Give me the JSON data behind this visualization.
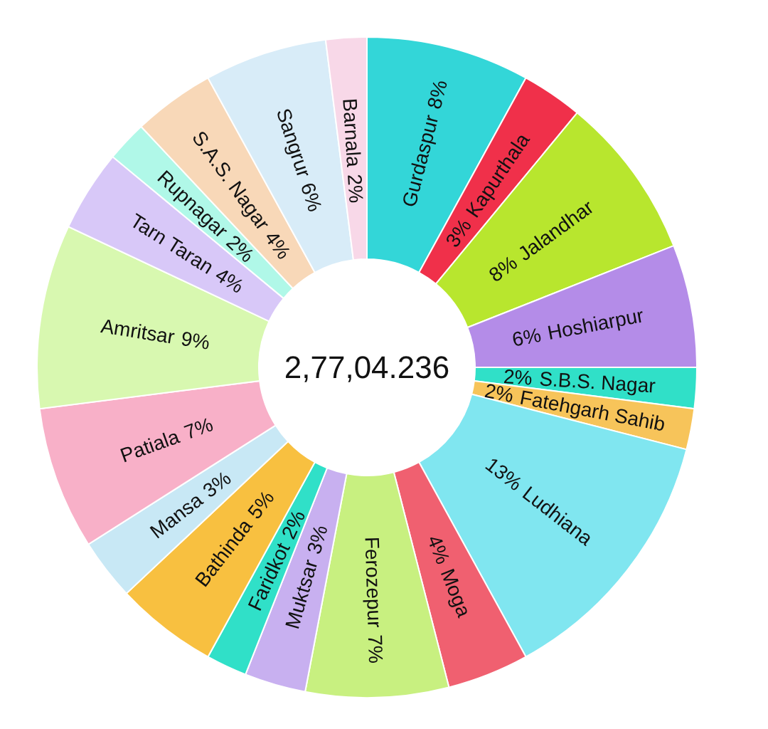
{
  "chart_data": {
    "type": "donut",
    "annotations": [
      "2,77,04.236"
    ],
    "categories": [
      "Gurdaspur",
      "Kapurthala",
      "Jalandhar",
      "Hoshiarpur",
      "S.B.S. Nagar",
      "Fatehgarh Sahib",
      "Ludhiana",
      "Moga",
      "Ferozepur",
      "Muktsar",
      "Faridkot",
      "Bathinda",
      "Mansa",
      "Patiala",
      "Amritsar",
      "Tarn Taran",
      "Rupnagar",
      "S.A.S. Nagar",
      "Sangrur",
      "Barnala"
    ],
    "values": [
      8,
      3,
      8,
      6,
      2,
      2,
      13,
      4,
      7,
      3,
      2,
      5,
      3,
      7,
      9,
      4,
      2,
      4,
      6,
      2
    ],
    "colors": [
      "#33d6d8",
      "#f0304a",
      "#b8e62e",
      "#b48ce8",
      "#30e0c8",
      "#f7c45a",
      "#80e6f0",
      "#f06070",
      "#c8f080",
      "#c8b0f0",
      "#30e0c8",
      "#f8c040",
      "#c8e8f5",
      "#f8b0c8",
      "#d8f8b0",
      "#d8c8f8",
      "#b0f8e8",
      "#f8d8b8",
      "#d8ecf8",
      "#f8d8e8"
    ],
    "value_labels": [
      "8%",
      "3%",
      "8%",
      "6%",
      "2%",
      "2%",
      "13%",
      "4%",
      "7%",
      "3%",
      "2%",
      "5%",
      "3%",
      "7%",
      "9%",
      "4%",
      "2%",
      "4%",
      "6%",
      "2%"
    ]
  }
}
